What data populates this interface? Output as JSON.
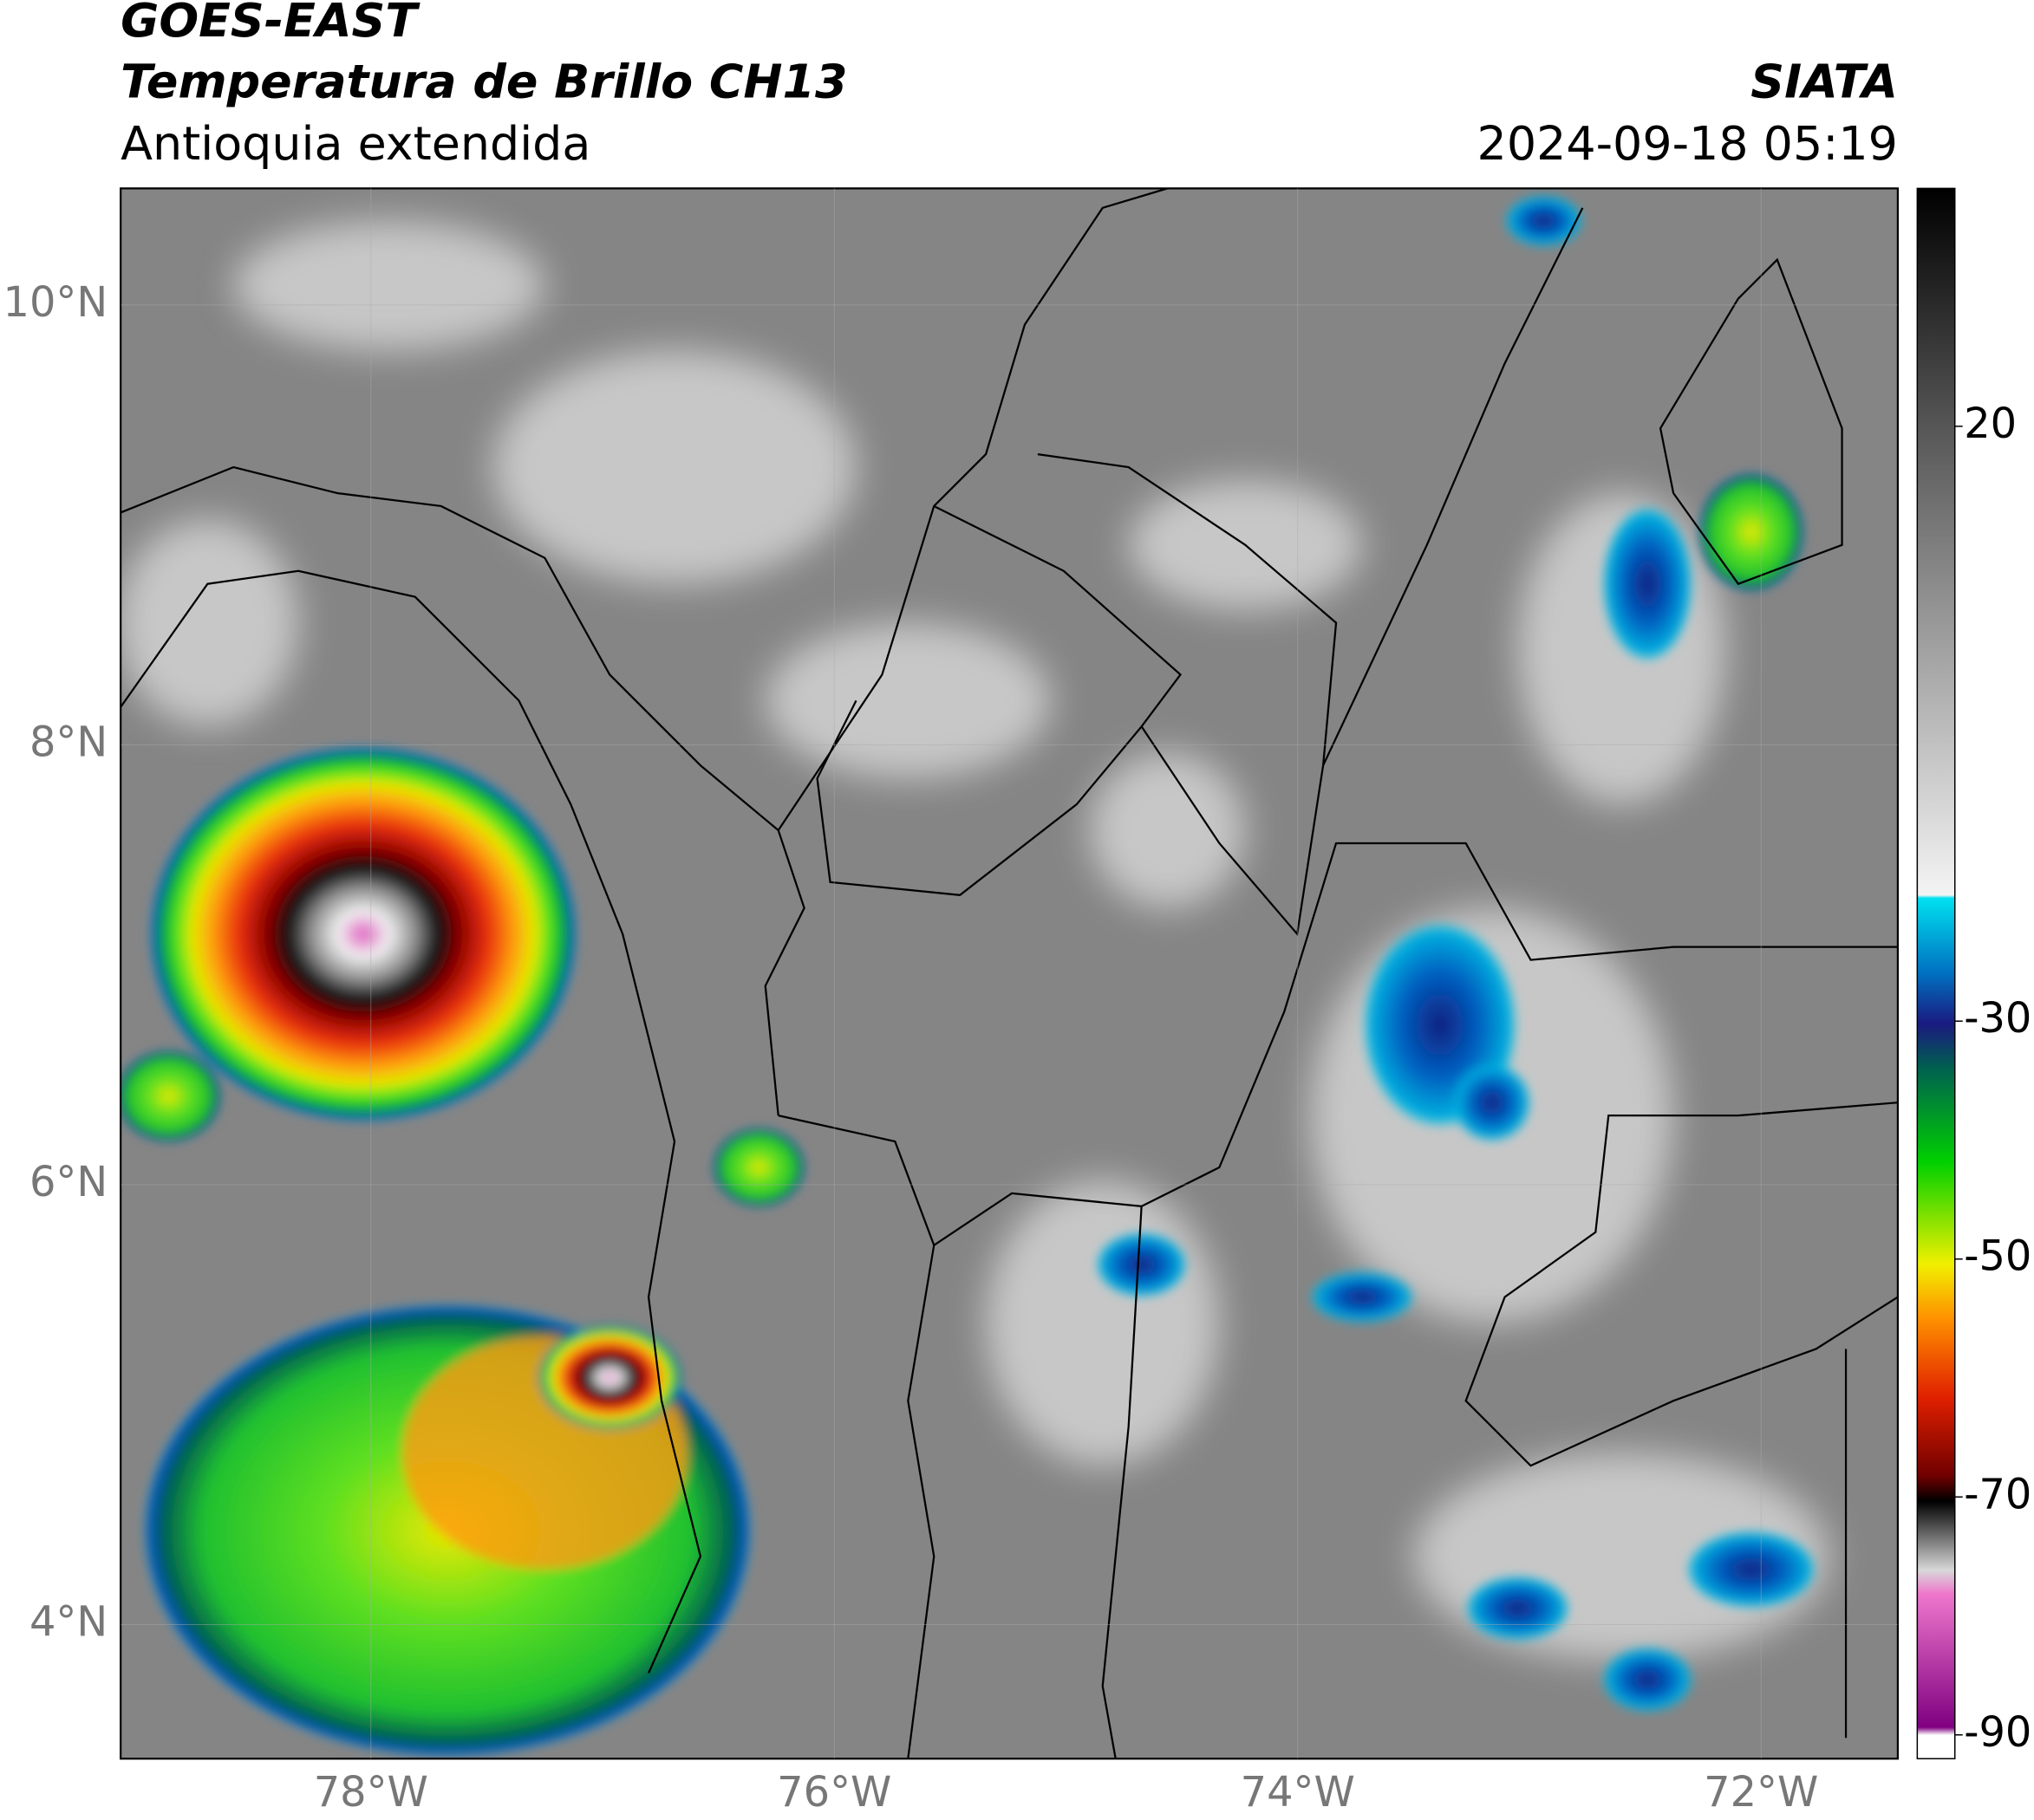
{
  "header": {
    "satellite": "GOES-EAST",
    "product": "Temperatura de Brillo CH13",
    "region": "Antioquia extendida",
    "source": "SIATA",
    "datetime": "2024-09-18 05:19"
  },
  "map": {
    "xlim": [
      -79.08,
      -71.41
    ],
    "ylim": [
      3.39,
      10.53
    ],
    "xticks": [
      {
        "value": -78,
        "label": "78°W"
      },
      {
        "value": -76,
        "label": "76°W"
      },
      {
        "value": -74,
        "label": "74°W"
      },
      {
        "value": -72,
        "label": "72°W"
      }
    ],
    "yticks": [
      {
        "value": 10,
        "label": "10°N"
      },
      {
        "value": 8,
        "label": "8°N"
      },
      {
        "value": 6,
        "label": "6°N"
      },
      {
        "value": 4,
        "label": "4°N"
      }
    ]
  },
  "colorbar": {
    "lim": [
      -92,
      40
    ],
    "ticks": [
      20,
      -30,
      -50,
      -70,
      -90
    ]
  }
}
